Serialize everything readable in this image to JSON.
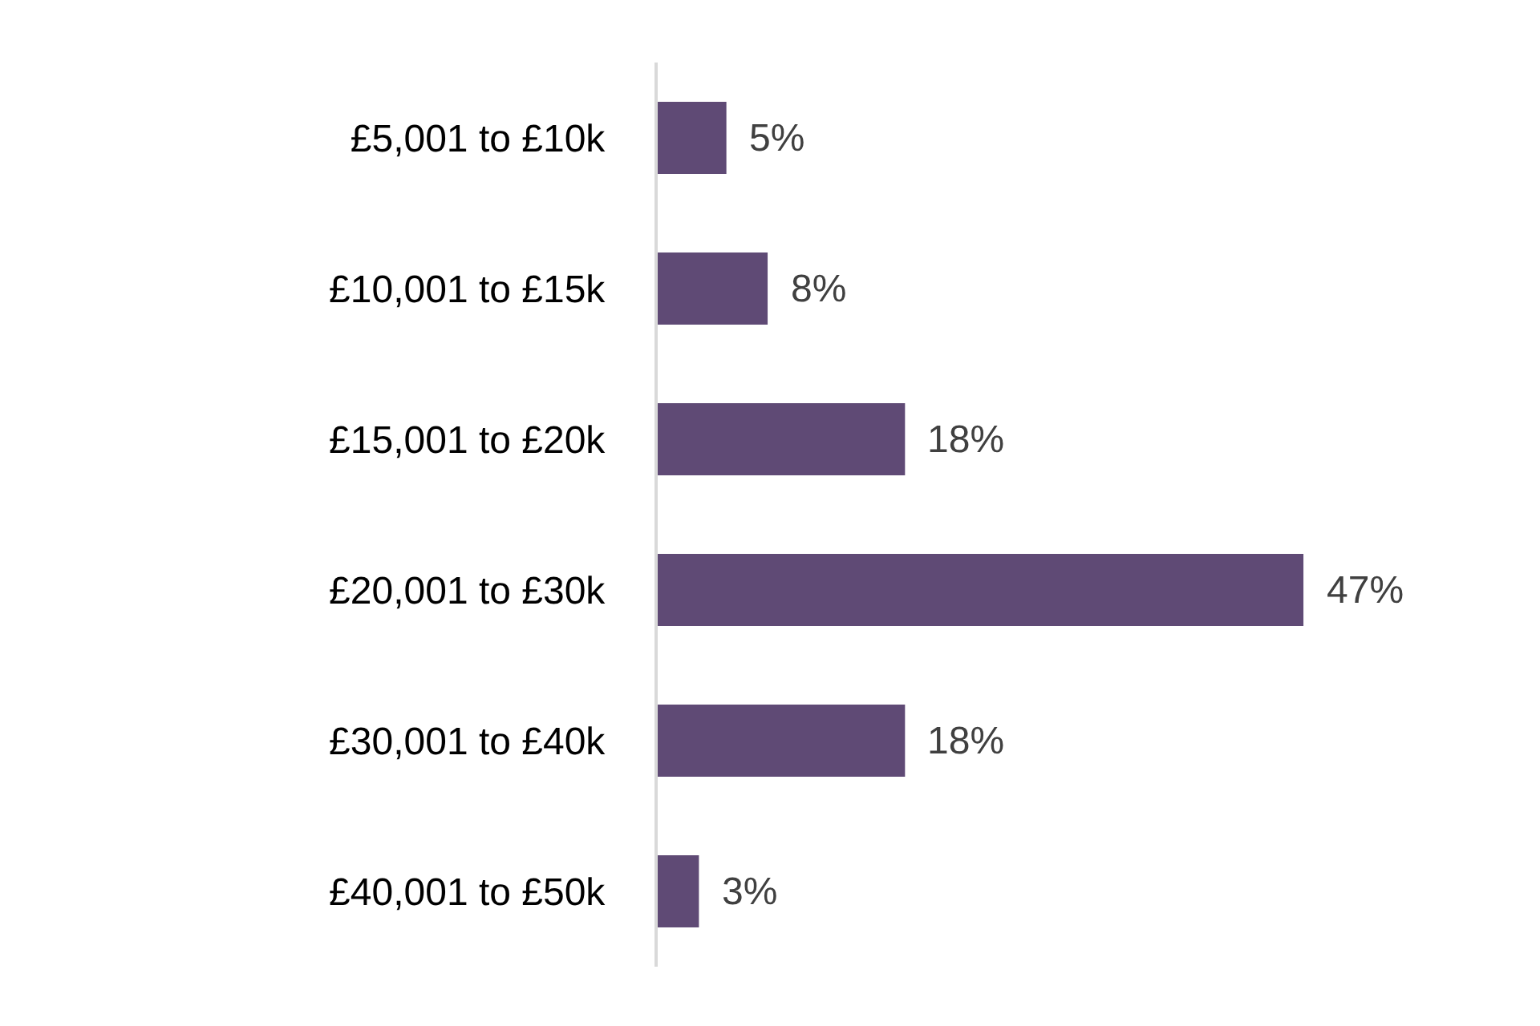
{
  "chart_data": {
    "type": "bar",
    "orientation": "horizontal",
    "categories": [
      "£5,001 to £10k",
      "£10,001 to £15k",
      "£15,001 to £20k",
      "£20,001 to £30k",
      "£30,001 to £40k",
      "£40,001 to £50k"
    ],
    "values": [
      5,
      8,
      18,
      47,
      18,
      3
    ],
    "value_labels": [
      "5%",
      "8%",
      "18%",
      "47%",
      "18%",
      "3%"
    ],
    "color": "#5f4a75",
    "tick_labels": "y"
  }
}
